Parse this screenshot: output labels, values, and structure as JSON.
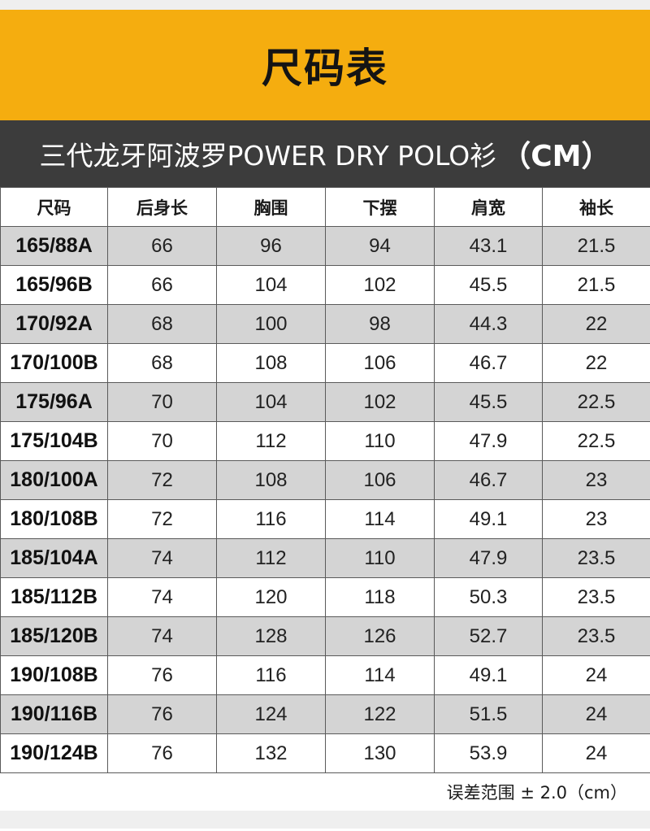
{
  "title": "尺码表",
  "subtitle": {
    "product": "三代龙牙阿波罗POWER DRY POLO衫",
    "unit": "（CM）"
  },
  "table": {
    "headers": [
      "尺码",
      "后身长",
      "胸围",
      "下摆",
      "肩宽",
      "袖长"
    ],
    "rows": [
      [
        "165/88A",
        "66",
        "96",
        "94",
        "43.1",
        "21.5"
      ],
      [
        "165/96B",
        "66",
        "104",
        "102",
        "45.5",
        "21.5"
      ],
      [
        "170/92A",
        "68",
        "100",
        "98",
        "44.3",
        "22"
      ],
      [
        "170/100B",
        "68",
        "108",
        "106",
        "46.7",
        "22"
      ],
      [
        "175/96A",
        "70",
        "104",
        "102",
        "45.5",
        "22.5"
      ],
      [
        "175/104B",
        "70",
        "112",
        "110",
        "47.9",
        "22.5"
      ],
      [
        "180/100A",
        "72",
        "108",
        "106",
        "46.7",
        "23"
      ],
      [
        "180/108B",
        "72",
        "116",
        "114",
        "49.1",
        "23"
      ],
      [
        "185/104A",
        "74",
        "112",
        "110",
        "47.9",
        "23.5"
      ],
      [
        "185/112B",
        "74",
        "120",
        "118",
        "50.3",
        "23.5"
      ],
      [
        "185/120B",
        "74",
        "128",
        "126",
        "52.7",
        "23.5"
      ],
      [
        "190/108B",
        "76",
        "116",
        "114",
        "49.1",
        "24"
      ],
      [
        "190/116B",
        "76",
        "124",
        "122",
        "51.5",
        "24"
      ],
      [
        "190/124B",
        "76",
        "132",
        "130",
        "53.9",
        "24"
      ]
    ]
  },
  "footer": {
    "note": "误差范围 ± 2.0（cm）"
  },
  "colors": {
    "title_band": "#f5ad0f",
    "subtitle_band": "#3c3c3c",
    "shaded_row": "#d4d4d4"
  }
}
